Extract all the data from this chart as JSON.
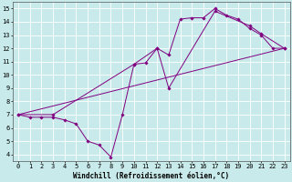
{
  "xlabel": "Windchill (Refroidissement éolien,°C)",
  "bg_color": "#c8eaea",
  "grid_color": "#ffffff",
  "line_color": "#800080",
  "line1": {
    "x": [
      0,
      1,
      2,
      3,
      4,
      5,
      6,
      7,
      8,
      9,
      10,
      11,
      12,
      13,
      14,
      15,
      16,
      17,
      18,
      19,
      20,
      21,
      22,
      23
    ],
    "y": [
      7.0,
      6.8,
      6.8,
      6.8,
      6.6,
      6.3,
      5.0,
      4.7,
      3.8,
      7.0,
      10.8,
      10.9,
      12.0,
      11.5,
      14.2,
      14.3,
      14.3,
      15.0,
      14.5,
      14.2,
      13.5,
      13.0,
      12.0,
      12.0
    ]
  },
  "line2": {
    "x": [
      0,
      3,
      10,
      12,
      13,
      17,
      20,
      21,
      23
    ],
    "y": [
      7.0,
      7.0,
      10.8,
      12.0,
      9.0,
      14.8,
      13.7,
      13.1,
      12.0
    ]
  },
  "line3": {
    "x": [
      0,
      23
    ],
    "y": [
      7.0,
      12.0
    ]
  },
  "xlim": [
    -0.5,
    23.5
  ],
  "ylim": [
    3.5,
    15.5
  ],
  "xticks": [
    0,
    1,
    2,
    3,
    4,
    5,
    6,
    7,
    8,
    9,
    10,
    11,
    12,
    13,
    14,
    15,
    16,
    17,
    18,
    19,
    20,
    21,
    22,
    23
  ],
  "yticks": [
    4,
    5,
    6,
    7,
    8,
    9,
    10,
    11,
    12,
    13,
    14,
    15
  ],
  "tick_fontsize": 5.0,
  "xlabel_fontsize": 5.5,
  "marker": "D",
  "markersize": 1.8,
  "linewidth": 0.7
}
